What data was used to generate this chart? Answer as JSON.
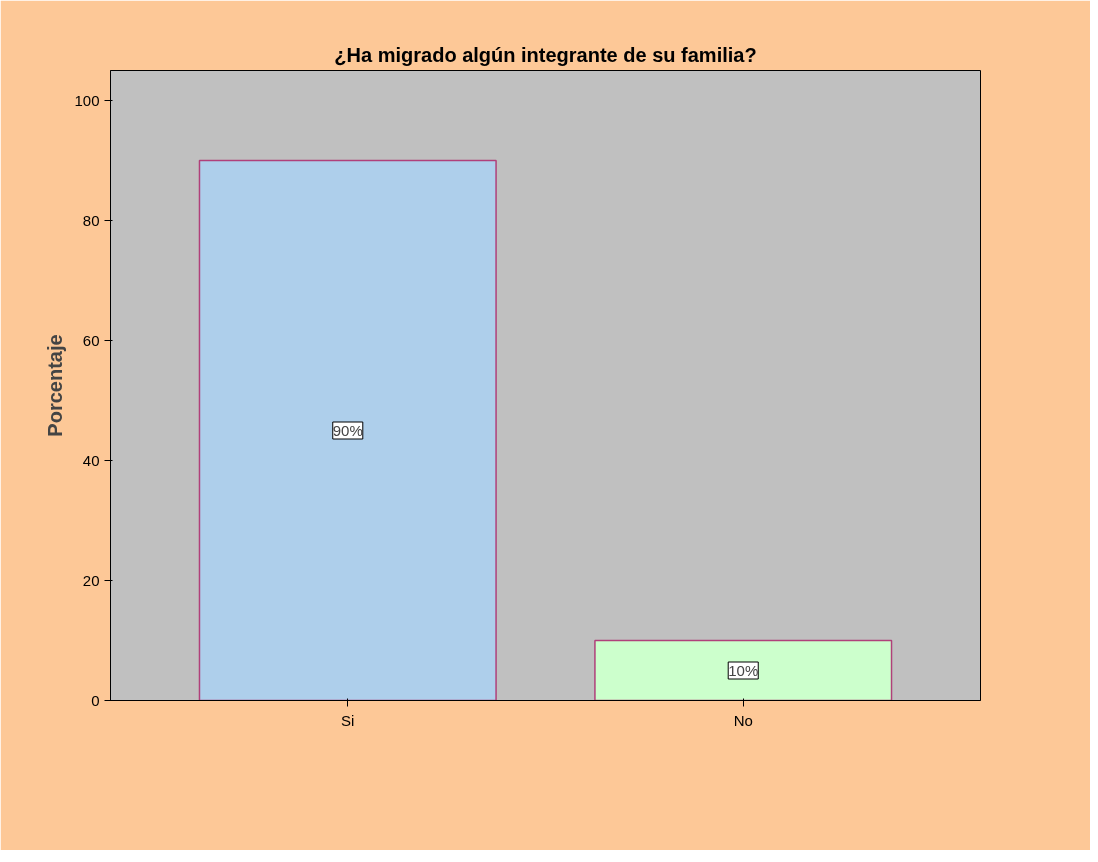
{
  "chart_data": {
    "type": "bar",
    "title": "¿Ha migrado algún integrante de su familia?",
    "ylabel": "Porcentaje",
    "categories": [
      "Si",
      "No"
    ],
    "values": [
      90,
      10
    ],
    "colors": [
      "#aecfeb",
      "#ccffcc"
    ],
    "value_labels": [
      "90%",
      "10%"
    ],
    "ylim": [
      0,
      105
    ],
    "yticks": [
      0,
      20,
      40,
      60,
      80,
      100
    ],
    "grid": false
  }
}
